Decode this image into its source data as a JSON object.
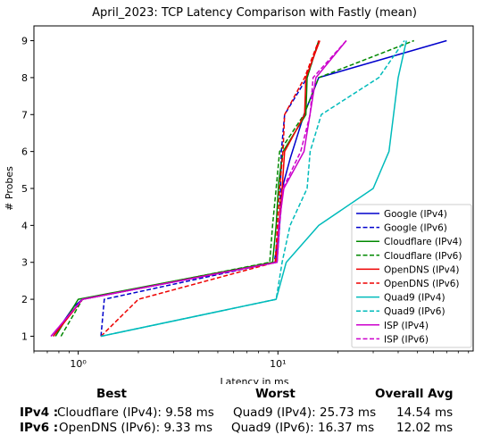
{
  "chart_data": {
    "type": "line",
    "title": "April_2023: TCP Latency Comparison with Fastly (mean)",
    "xlabel": "Latency in ms",
    "ylabel": "# Probes",
    "xscale": "log",
    "xlim": [
      0.6,
      95
    ],
    "ylim": [
      0.6,
      9.4
    ],
    "x_major_ticks": [
      1,
      10
    ],
    "x_tick_labels": [
      "10⁰",
      "10¹"
    ],
    "y_ticks": [
      1,
      2,
      3,
      4,
      5,
      6,
      7,
      8,
      9
    ],
    "legend_position": "lower-right",
    "grid": false,
    "series": [
      {
        "name": "Google (IPv4)",
        "color": "#0000cc",
        "dash": "solid",
        "points": [
          [
            0.75,
            1
          ],
          [
            0.95,
            1.8
          ],
          [
            1.05,
            2
          ],
          [
            9.9,
            3
          ],
          [
            10.5,
            5
          ],
          [
            11.5,
            5.8
          ],
          [
            13.5,
            7
          ],
          [
            16,
            8
          ],
          [
            70,
            9
          ]
        ]
      },
      {
        "name": "Google (IPv6)",
        "color": "#0000cc",
        "dash": "dashed",
        "points": [
          [
            1.3,
            1
          ],
          [
            1.35,
            2
          ],
          [
            9.6,
            3
          ],
          [
            10.2,
            4
          ],
          [
            10.4,
            6
          ],
          [
            10.8,
            7
          ],
          [
            14,
            8
          ],
          [
            16,
            9
          ]
        ]
      },
      {
        "name": "Cloudflare (IPv4)",
        "color": "#008800",
        "dash": "solid",
        "points": [
          [
            0.77,
            1
          ],
          [
            1.0,
            2
          ],
          [
            9.4,
            3
          ],
          [
            9.8,
            4
          ],
          [
            10.1,
            5.2
          ],
          [
            10.6,
            6
          ],
          [
            13.8,
            7
          ],
          [
            14,
            8
          ],
          [
            16,
            9
          ]
        ]
      },
      {
        "name": "Cloudflare (IPv6)",
        "color": "#008800",
        "dash": "dashed",
        "points": [
          [
            0.82,
            1
          ],
          [
            1.05,
            2
          ],
          [
            9.1,
            3
          ],
          [
            9.4,
            4
          ],
          [
            9.8,
            5
          ],
          [
            10.2,
            6
          ],
          [
            13.5,
            7
          ],
          [
            16,
            8
          ],
          [
            48,
            9
          ]
        ]
      },
      {
        "name": "OpenDNS (IPv4)",
        "color": "#ee0000",
        "dash": "solid",
        "points": [
          [
            0.75,
            1
          ],
          [
            1.05,
            2
          ],
          [
            9.8,
            3
          ],
          [
            10.1,
            4
          ],
          [
            10.5,
            5
          ],
          [
            10.8,
            6
          ],
          [
            13.6,
            7
          ],
          [
            13.8,
            8
          ],
          [
            16.2,
            9
          ]
        ]
      },
      {
        "name": "OpenDNS (IPv6)",
        "color": "#ee0000",
        "dash": "dashed",
        "points": [
          [
            1.3,
            1
          ],
          [
            2,
            2
          ],
          [
            9.7,
            3
          ],
          [
            10.2,
            5
          ],
          [
            10.6,
            6
          ],
          [
            10.8,
            7
          ],
          [
            13.6,
            8
          ],
          [
            16,
            9
          ]
        ]
      },
      {
        "name": "Quad9 (IPv4)",
        "color": "#00bbbb",
        "dash": "solid",
        "points": [
          [
            1.3,
            1
          ],
          [
            9.8,
            2
          ],
          [
            11,
            3
          ],
          [
            16,
            4
          ],
          [
            30,
            5
          ],
          [
            36,
            6
          ],
          [
            40,
            8
          ],
          [
            44,
            9
          ]
        ]
      },
      {
        "name": "Quad9 (IPv6)",
        "color": "#00bbbb",
        "dash": "dashed",
        "points": [
          [
            1.3,
            1
          ],
          [
            9.8,
            2
          ],
          [
            10.5,
            3
          ],
          [
            11.5,
            4
          ],
          [
            14,
            5
          ],
          [
            14.5,
            6
          ],
          [
            16.5,
            7
          ],
          [
            32,
            8
          ],
          [
            43,
            9
          ]
        ]
      },
      {
        "name": "ISP (IPv4)",
        "color": "#cc00cc",
        "dash": "solid",
        "points": [
          [
            0.73,
            1
          ],
          [
            1.05,
            2
          ],
          [
            9.9,
            3
          ],
          [
            10.1,
            4
          ],
          [
            10.7,
            5
          ],
          [
            13.5,
            6
          ],
          [
            15.5,
            8
          ],
          [
            22,
            9
          ]
        ]
      },
      {
        "name": "ISP (IPv6)",
        "color": "#cc00cc",
        "dash": "dashed",
        "points": [
          [
            0.73,
            1
          ],
          [
            1.05,
            2
          ],
          [
            9.9,
            3
          ],
          [
            10.2,
            4
          ],
          [
            10.6,
            5
          ],
          [
            13,
            6
          ],
          [
            14.5,
            7
          ],
          [
            15,
            8
          ],
          [
            22,
            9
          ]
        ]
      }
    ]
  },
  "summary": {
    "headers": {
      "best": "Best",
      "worst": "Worst",
      "overall": "Overall Avg"
    },
    "rows": [
      {
        "label": "IPv4 :",
        "best": "Cloudflare (IPv4): 9.58 ms",
        "worst": "Quad9 (IPv4): 25.73 ms",
        "overall": "14.54 ms"
      },
      {
        "label": "IPv6 :",
        "best": "OpenDNS (IPv6): 9.33 ms",
        "worst": "Quad9 (IPv6): 16.37 ms",
        "overall": "12.02 ms"
      }
    ]
  }
}
